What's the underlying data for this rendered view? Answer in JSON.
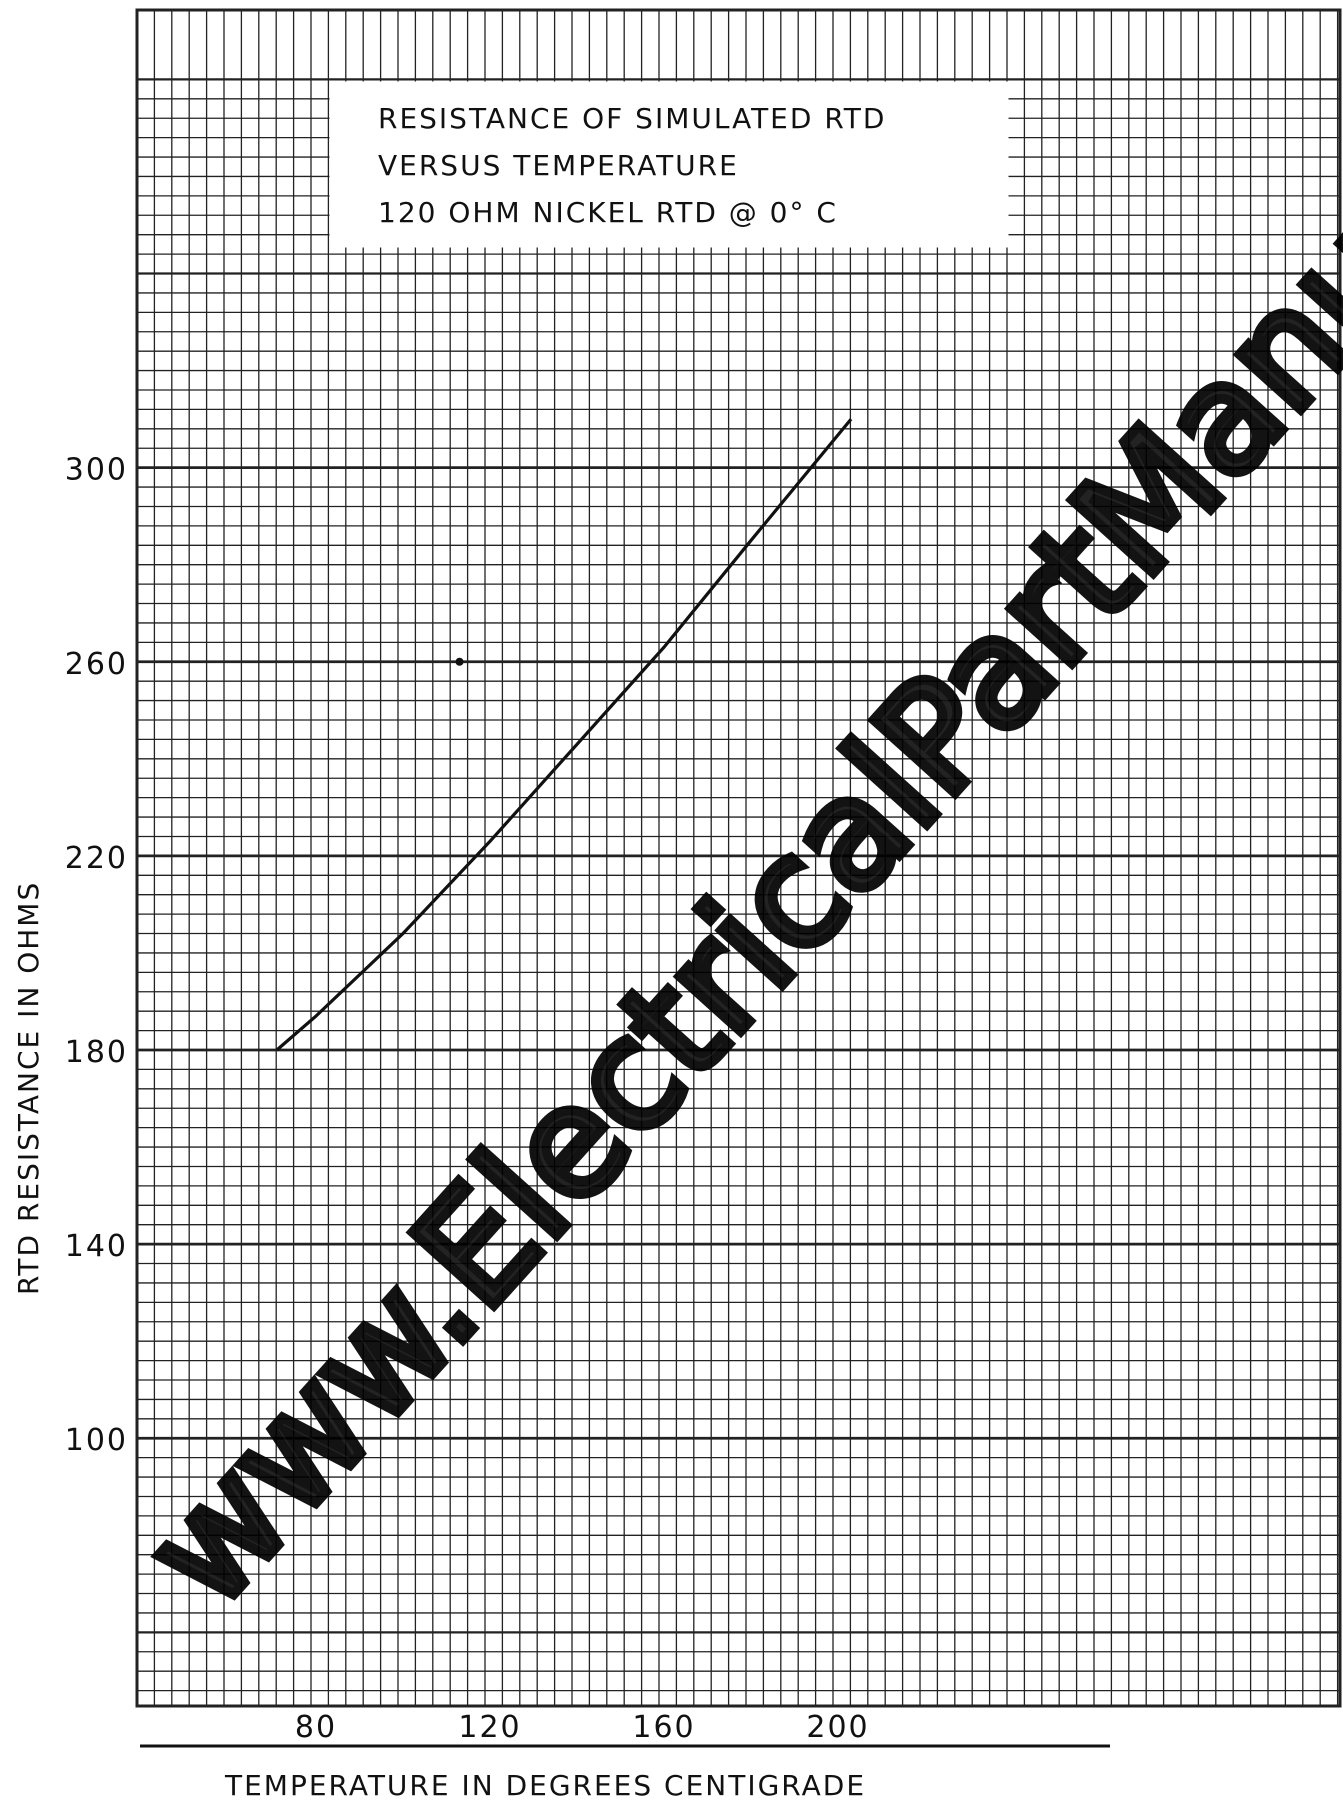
{
  "chart_data": {
    "type": "line",
    "title_lines": [
      "RESISTANCE  OF  SIMULATED  RTD",
      "VERSUS  TEMPERATURE",
      "120  OHM  NICKEL  RTD  @ 0° C"
    ],
    "xlabel": "TEMPERATURE  IN  DEGREES  CENTIGRADE",
    "ylabel": "RTD  RESISTANCE  IN  OHMS",
    "x_ticks": [
      80,
      120,
      160,
      200
    ],
    "y_ticks": [
      100,
      140,
      180,
      220,
      260,
      300
    ],
    "xlim": [
      42,
      230
    ],
    "ylim": [
      44,
      300
    ],
    "grid": true,
    "series": [
      {
        "x": [
          71,
          80,
          100,
          120,
          140,
          160,
          180,
          203
        ],
        "y": [
          180,
          187,
          204,
          223,
          243,
          263,
          285,
          310
        ]
      }
    ],
    "stray_marks": [
      {
        "x": 113,
        "y": 260
      }
    ],
    "line_color": "#111111",
    "grid_color": "#222222"
  },
  "watermark": {
    "text": "www.ElectricalPartManuals.com"
  }
}
